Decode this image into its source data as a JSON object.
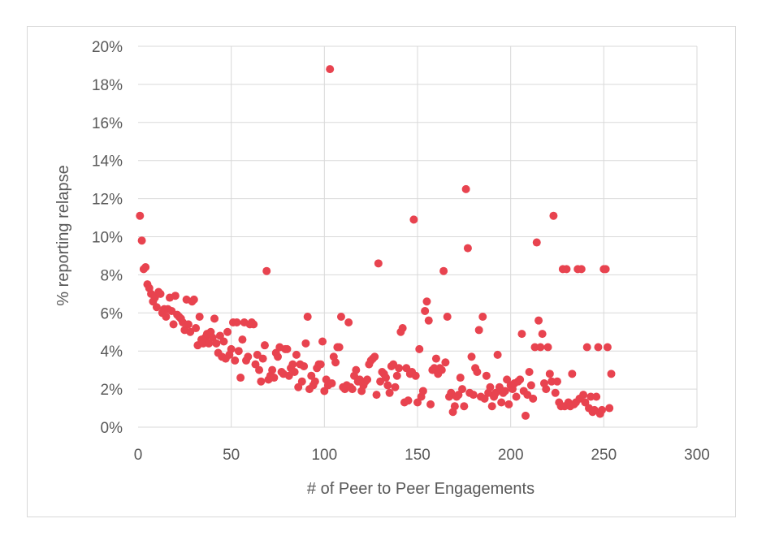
{
  "chart_data": {
    "type": "scatter",
    "title": "",
    "xlabel": "# of Peer to Peer Engagements",
    "ylabel": "% reporting relapse",
    "xlim": [
      0,
      300
    ],
    "ylim": [
      0,
      0.2
    ],
    "x_ticks": [
      0,
      50,
      100,
      150,
      200,
      250,
      300
    ],
    "x_tick_labels": [
      "0",
      "50",
      "100",
      "150",
      "200",
      "250",
      "300"
    ],
    "y_ticks": [
      0,
      0.02,
      0.04,
      0.06,
      0.08,
      0.1,
      0.12,
      0.14,
      0.16,
      0.18,
      0.2
    ],
    "y_tick_labels": [
      "0%",
      "2%",
      "4%",
      "6%",
      "8%",
      "10%",
      "12%",
      "14%",
      "16%",
      "18%",
      "20%"
    ],
    "grid": true,
    "legend": "none",
    "marker_color": "#e8434f",
    "gridline_color": "#d9d9d9",
    "series": [
      {
        "name": "relapse",
        "points": [
          [
            1,
            0.111
          ],
          [
            2,
            0.098
          ],
          [
            3,
            0.083
          ],
          [
            4,
            0.084
          ],
          [
            5,
            0.075
          ],
          [
            6,
            0.073
          ],
          [
            7,
            0.07
          ],
          [
            8,
            0.066
          ],
          [
            9,
            0.068
          ],
          [
            10,
            0.063
          ],
          [
            11,
            0.071
          ],
          [
            12,
            0.07
          ],
          [
            13,
            0.06
          ],
          [
            14,
            0.062
          ],
          [
            15,
            0.058
          ],
          [
            16,
            0.062
          ],
          [
            17,
            0.068
          ],
          [
            18,
            0.061
          ],
          [
            19,
            0.054
          ],
          [
            20,
            0.069
          ],
          [
            21,
            0.059
          ],
          [
            22,
            0.058
          ],
          [
            23,
            0.057
          ],
          [
            24,
            0.055
          ],
          [
            25,
            0.051
          ],
          [
            26,
            0.067
          ],
          [
            27,
            0.054
          ],
          [
            28,
            0.05
          ],
          [
            29,
            0.066
          ],
          [
            30,
            0.067
          ],
          [
            31,
            0.052
          ],
          [
            32,
            0.043
          ],
          [
            33,
            0.058
          ],
          [
            34,
            0.046
          ],
          [
            35,
            0.044
          ],
          [
            36,
            0.047
          ],
          [
            37,
            0.049
          ],
          [
            38,
            0.044
          ],
          [
            39,
            0.05
          ],
          [
            40,
            0.047
          ],
          [
            41,
            0.057
          ],
          [
            42,
            0.044
          ],
          [
            43,
            0.039
          ],
          [
            44,
            0.048
          ],
          [
            45,
            0.037
          ],
          [
            46,
            0.045
          ],
          [
            47,
            0.036
          ],
          [
            48,
            0.05
          ],
          [
            49,
            0.038
          ],
          [
            50,
            0.041
          ],
          [
            51,
            0.055
          ],
          [
            52,
            0.035
          ],
          [
            53,
            0.055
          ],
          [
            54,
            0.04
          ],
          [
            55,
            0.026
          ],
          [
            56,
            0.046
          ],
          [
            57,
            0.055
          ],
          [
            58,
            0.035
          ],
          [
            59,
            0.037
          ],
          [
            60,
            0.054
          ],
          [
            61,
            0.055
          ],
          [
            62,
            0.054
          ],
          [
            63,
            0.033
          ],
          [
            64,
            0.038
          ],
          [
            65,
            0.03
          ],
          [
            66,
            0.024
          ],
          [
            67,
            0.036
          ],
          [
            68,
            0.043
          ],
          [
            69,
            0.082
          ],
          [
            70,
            0.025
          ],
          [
            71,
            0.027
          ],
          [
            72,
            0.03
          ],
          [
            73,
            0.026
          ],
          [
            74,
            0.039
          ],
          [
            75,
            0.037
          ],
          [
            76,
            0.042
          ],
          [
            77,
            0.029
          ],
          [
            78,
            0.028
          ],
          [
            79,
            0.041
          ],
          [
            80,
            0.041
          ],
          [
            81,
            0.027
          ],
          [
            82,
            0.031
          ],
          [
            83,
            0.033
          ],
          [
            84,
            0.029
          ],
          [
            85,
            0.038
          ],
          [
            86,
            0.021
          ],
          [
            87,
            0.033
          ],
          [
            88,
            0.024
          ],
          [
            89,
            0.032
          ],
          [
            90,
            0.044
          ],
          [
            91,
            0.058
          ],
          [
            92,
            0.02
          ],
          [
            93,
            0.027
          ],
          [
            94,
            0.022
          ],
          [
            95,
            0.024
          ],
          [
            96,
            0.031
          ],
          [
            97,
            0.033
          ],
          [
            98,
            0.033
          ],
          [
            99,
            0.045
          ],
          [
            100,
            0.019
          ],
          [
            101,
            0.025
          ],
          [
            102,
            0.022
          ],
          [
            103,
            0.188
          ],
          [
            104,
            0.023
          ],
          [
            105,
            0.037
          ],
          [
            106,
            0.034
          ],
          [
            107,
            0.042
          ],
          [
            108,
            0.042
          ],
          [
            109,
            0.058
          ],
          [
            110,
            0.021
          ],
          [
            111,
            0.02
          ],
          [
            112,
            0.022
          ],
          [
            113,
            0.055
          ],
          [
            114,
            0.021
          ],
          [
            115,
            0.02
          ],
          [
            116,
            0.027
          ],
          [
            117,
            0.03
          ],
          [
            118,
            0.024
          ],
          [
            119,
            0.025
          ],
          [
            120,
            0.019
          ],
          [
            121,
            0.022
          ],
          [
            122,
            0.024
          ],
          [
            123,
            0.025
          ],
          [
            124,
            0.033
          ],
          [
            125,
            0.035
          ],
          [
            126,
            0.036
          ],
          [
            127,
            0.037
          ],
          [
            128,
            0.017
          ],
          [
            129,
            0.086
          ],
          [
            130,
            0.024
          ],
          [
            131,
            0.029
          ],
          [
            132,
            0.028
          ],
          [
            133,
            0.026
          ],
          [
            134,
            0.022
          ],
          [
            135,
            0.018
          ],
          [
            136,
            0.032
          ],
          [
            137,
            0.033
          ],
          [
            138,
            0.021
          ],
          [
            139,
            0.027
          ],
          [
            140,
            0.031
          ],
          [
            141,
            0.05
          ],
          [
            142,
            0.052
          ],
          [
            143,
            0.013
          ],
          [
            144,
            0.031
          ],
          [
            145,
            0.014
          ],
          [
            146,
            0.028
          ],
          [
            147,
            0.029
          ],
          [
            148,
            0.109
          ],
          [
            149,
            0.027
          ],
          [
            150,
            0.013
          ],
          [
            151,
            0.041
          ],
          [
            152,
            0.016
          ],
          [
            153,
            0.019
          ],
          [
            154,
            0.061
          ],
          [
            155,
            0.066
          ],
          [
            156,
            0.056
          ],
          [
            157,
            0.012
          ],
          [
            158,
            0.03
          ],
          [
            159,
            0.031
          ],
          [
            160,
            0.036
          ],
          [
            161,
            0.028
          ],
          [
            162,
            0.031
          ],
          [
            163,
            0.03
          ],
          [
            164,
            0.082
          ],
          [
            165,
            0.034
          ],
          [
            166,
            0.058
          ],
          [
            167,
            0.016
          ],
          [
            168,
            0.018
          ],
          [
            169,
            0.008
          ],
          [
            170,
            0.011
          ],
          [
            171,
            0.016
          ],
          [
            172,
            0.017
          ],
          [
            173,
            0.026
          ],
          [
            174,
            0.02
          ],
          [
            175,
            0.011
          ],
          [
            176,
            0.125
          ],
          [
            177,
            0.094
          ],
          [
            178,
            0.018
          ],
          [
            179,
            0.037
          ],
          [
            180,
            0.017
          ],
          [
            181,
            0.031
          ],
          [
            182,
            0.029
          ],
          [
            183,
            0.051
          ],
          [
            184,
            0.016
          ],
          [
            185,
            0.058
          ],
          [
            186,
            0.015
          ],
          [
            187,
            0.027
          ],
          [
            188,
            0.018
          ],
          [
            189,
            0.021
          ],
          [
            190,
            0.011
          ],
          [
            191,
            0.016
          ],
          [
            192,
            0.018
          ],
          [
            193,
            0.038
          ],
          [
            194,
            0.021
          ],
          [
            195,
            0.013
          ],
          [
            196,
            0.018
          ],
          [
            197,
            0.019
          ],
          [
            198,
            0.025
          ],
          [
            199,
            0.012
          ],
          [
            200,
            0.022
          ],
          [
            201,
            0.02
          ],
          [
            202,
            0.023
          ],
          [
            203,
            0.016
          ],
          [
            204,
            0.024
          ],
          [
            205,
            0.025
          ],
          [
            206,
            0.049
          ],
          [
            207,
            0.019
          ],
          [
            208,
            0.006
          ],
          [
            209,
            0.017
          ],
          [
            210,
            0.029
          ],
          [
            211,
            0.022
          ],
          [
            212,
            0.015
          ],
          [
            213,
            0.042
          ],
          [
            214,
            0.097
          ],
          [
            215,
            0.056
          ],
          [
            216,
            0.042
          ],
          [
            217,
            0.049
          ],
          [
            218,
            0.023
          ],
          [
            219,
            0.02
          ],
          [
            220,
            0.042
          ],
          [
            221,
            0.028
          ],
          [
            222,
            0.024
          ],
          [
            223,
            0.111
          ],
          [
            224,
            0.018
          ],
          [
            225,
            0.024
          ],
          [
            226,
            0.013
          ],
          [
            227,
            0.011
          ],
          [
            228,
            0.083
          ],
          [
            229,
            0.011
          ],
          [
            230,
            0.083
          ],
          [
            231,
            0.013
          ],
          [
            232,
            0.011
          ],
          [
            233,
            0.028
          ],
          [
            234,
            0.012
          ],
          [
            235,
            0.013
          ],
          [
            236,
            0.083
          ],
          [
            237,
            0.015
          ],
          [
            238,
            0.083
          ],
          [
            239,
            0.017
          ],
          [
            240,
            0.013
          ],
          [
            241,
            0.042
          ],
          [
            242,
            0.01
          ],
          [
            243,
            0.016
          ],
          [
            244,
            0.008
          ],
          [
            245,
            0.009
          ],
          [
            246,
            0.016
          ],
          [
            247,
            0.042
          ],
          [
            248,
            0.007
          ],
          [
            249,
            0.009
          ],
          [
            250,
            0.083
          ],
          [
            251,
            0.083
          ],
          [
            252,
            0.042
          ],
          [
            253,
            0.01
          ],
          [
            254,
            0.028
          ]
        ]
      }
    ]
  }
}
